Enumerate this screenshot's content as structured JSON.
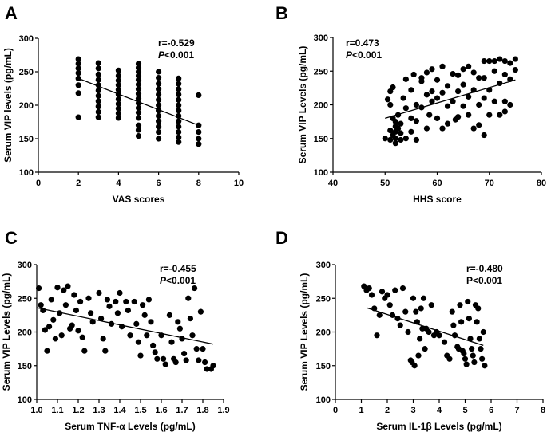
{
  "figure": {
    "panel_labels": [
      "A",
      "B",
      "C",
      "D"
    ]
  },
  "chart_data": [
    {
      "type": "scatter",
      "panel": "A",
      "xlabel": "VAS scores",
      "ylabel": "Serum VIP levels (pg/mL)",
      "xlim": [
        0,
        10
      ],
      "ylim": [
        100,
        300
      ],
      "xticks": [
        0,
        2,
        4,
        6,
        8,
        10
      ],
      "xtick_labels": [
        "0",
        "2",
        "4",
        "6",
        "8",
        "10"
      ],
      "yticks": [
        100,
        150,
        200,
        250,
        300
      ],
      "annotation_r": "r=-0.529",
      "annotation_p_italic": "P",
      "annotation_p_rest": "<0.001",
      "fit": {
        "x": [
          2,
          8
        ],
        "y": [
          240,
          170
        ]
      },
      "points": [
        [
          2,
          269
        ],
        [
          2,
          262
        ],
        [
          2,
          255
        ],
        [
          2,
          248
        ],
        [
          2,
          240
        ],
        [
          2,
          230
        ],
        [
          2,
          218
        ],
        [
          2,
          182
        ],
        [
          3,
          263
        ],
        [
          3,
          255
        ],
        [
          3,
          246
        ],
        [
          3,
          238
        ],
        [
          3,
          230
        ],
        [
          3,
          222
        ],
        [
          3,
          214
        ],
        [
          3,
          206
        ],
        [
          3,
          198
        ],
        [
          3,
          190
        ],
        [
          3,
          182
        ],
        [
          4,
          252
        ],
        [
          4,
          244
        ],
        [
          4,
          237
        ],
        [
          4,
          230
        ],
        [
          4,
          223
        ],
        [
          4,
          216
        ],
        [
          4,
          209
        ],
        [
          4,
          202
        ],
        [
          4,
          195
        ],
        [
          4,
          188
        ],
        [
          4,
          181
        ],
        [
          5,
          262
        ],
        [
          5,
          256
        ],
        [
          5,
          250
        ],
        [
          5,
          244
        ],
        [
          5,
          238
        ],
        [
          5,
          231
        ],
        [
          5,
          224
        ],
        [
          5,
          217
        ],
        [
          5,
          210
        ],
        [
          5,
          203
        ],
        [
          5,
          196
        ],
        [
          5,
          189
        ],
        [
          5,
          181
        ],
        [
          5,
          170
        ],
        [
          5,
          163
        ],
        [
          5,
          154
        ],
        [
          6,
          250
        ],
        [
          6,
          241
        ],
        [
          6,
          232
        ],
        [
          6,
          224
        ],
        [
          6,
          216
        ],
        [
          6,
          208
        ],
        [
          6,
          200
        ],
        [
          6,
          192
        ],
        [
          6,
          184
        ],
        [
          6,
          176
        ],
        [
          6,
          168
        ],
        [
          6,
          160
        ],
        [
          6,
          150
        ],
        [
          7,
          240
        ],
        [
          7,
          232
        ],
        [
          7,
          224
        ],
        [
          7,
          216
        ],
        [
          7,
          208
        ],
        [
          7,
          200
        ],
        [
          7,
          192
        ],
        [
          7,
          184
        ],
        [
          7,
          176
        ],
        [
          7,
          168
        ],
        [
          7,
          160
        ],
        [
          7,
          152
        ],
        [
          7,
          145
        ],
        [
          8,
          215
        ],
        [
          8,
          170
        ],
        [
          8,
          160
        ],
        [
          8,
          150
        ],
        [
          8,
          142
        ]
      ]
    },
    {
      "type": "scatter",
      "panel": "B",
      "xlabel": "HHS score",
      "ylabel": "Serum VIP Levels (pg/mL)",
      "xlim": [
        40,
        80
      ],
      "ylim": [
        100,
        300
      ],
      "xticks": [
        40,
        50,
        60,
        70,
        80
      ],
      "xtick_labels": [
        "40",
        "50",
        "60",
        "70",
        "80"
      ],
      "yticks": [
        100,
        150,
        200,
        250,
        300
      ],
      "annotation_r": "r=0.473",
      "annotation_p_italic": "P",
      "annotation_p_rest": "<0.001",
      "fit": {
        "x": [
          50,
          75
        ],
        "y": [
          180,
          237
        ]
      },
      "points": [
        [
          50,
          150
        ],
        [
          50.5,
          208
        ],
        [
          51,
          220
        ],
        [
          51,
          200
        ],
        [
          51,
          162
        ],
        [
          51,
          148
        ],
        [
          51.5,
          226
        ],
        [
          51.5,
          180
        ],
        [
          51.5,
          155
        ],
        [
          52,
          175
        ],
        [
          52,
          168
        ],
        [
          52,
          160
        ],
        [
          52,
          150
        ],
        [
          52,
          143
        ],
        [
          52.5,
          185
        ],
        [
          52.5,
          165
        ],
        [
          53,
          172
        ],
        [
          53,
          158
        ],
        [
          53,
          148
        ],
        [
          53.5,
          210
        ],
        [
          54,
          238
        ],
        [
          54,
          195
        ],
        [
          54,
          150
        ],
        [
          55,
          222
        ],
        [
          55,
          180
        ],
        [
          55,
          160
        ],
        [
          55.5,
          245
        ],
        [
          56,
          200
        ],
        [
          56,
          176
        ],
        [
          56,
          148
        ],
        [
          57,
          240
        ],
        [
          57,
          235
        ],
        [
          57,
          196
        ],
        [
          58,
          248
        ],
        [
          58,
          215
        ],
        [
          58,
          165
        ],
        [
          58.5,
          185
        ],
        [
          59,
          253
        ],
        [
          59,
          220
        ],
        [
          59,
          205
        ],
        [
          60,
          237
        ],
        [
          60,
          210
        ],
        [
          60,
          180
        ],
        [
          61,
          257
        ],
        [
          61,
          218
        ],
        [
          61,
          165
        ],
        [
          62,
          228
        ],
        [
          62,
          198
        ],
        [
          62,
          172
        ],
        [
          63,
          246
        ],
        [
          63,
          205
        ],
        [
          63.5,
          178
        ],
        [
          64,
          244
        ],
        [
          64,
          220
        ],
        [
          64,
          182
        ],
        [
          65,
          253
        ],
        [
          65,
          230
        ],
        [
          65,
          198
        ],
        [
          66,
          257
        ],
        [
          66,
          212
        ],
        [
          66,
          185
        ],
        [
          67,
          248
        ],
        [
          67,
          222
        ],
        [
          67,
          165
        ],
        [
          68,
          240
        ],
        [
          68,
          200
        ],
        [
          68,
          170
        ],
        [
          69,
          265
        ],
        [
          69,
          240
        ],
        [
          69,
          210
        ],
        [
          69,
          155
        ],
        [
          70,
          265
        ],
        [
          70,
          222
        ],
        [
          70,
          185
        ],
        [
          71,
          265
        ],
        [
          71,
          250
        ],
        [
          71,
          205
        ],
        [
          72,
          268
        ],
        [
          72,
          232
        ],
        [
          72,
          185
        ],
        [
          73,
          265
        ],
        [
          73,
          245
        ],
        [
          73,
          205
        ],
        [
          73,
          190
        ],
        [
          74,
          262
        ],
        [
          74,
          238
        ],
        [
          74,
          200
        ],
        [
          75,
          268
        ],
        [
          75,
          252
        ]
      ]
    },
    {
      "type": "scatter",
      "panel": "C",
      "xlabel": "Serum TNF-α Levels (pg/mL)",
      "ylabel": "Serum VIP Levels (pg/mL)",
      "xlim": [
        1.0,
        1.9
      ],
      "ylim": [
        100,
        300
      ],
      "xticks": [
        1.0,
        1.1,
        1.2,
        1.3,
        1.4,
        1.5,
        1.6,
        1.7,
        1.8,
        1.9
      ],
      "xtick_labels": [
        "1.0",
        "1.1",
        "1.2",
        "1.3",
        "1.4",
        "1.5",
        "1.6",
        "1.7",
        "1.8",
        "1.9"
      ],
      "yticks": [
        100,
        150,
        200,
        250,
        300
      ],
      "annotation_r": "r=-0.455",
      "annotation_p_italic": "P",
      "annotation_p_rest": "<0.001",
      "fit": {
        "x": [
          1.0,
          1.85
        ],
        "y": [
          236,
          182
        ]
      },
      "points": [
        [
          1.01,
          265
        ],
        [
          1.02,
          240
        ],
        [
          1.03,
          232
        ],
        [
          1.04,
          203
        ],
        [
          1.05,
          172
        ],
        [
          1.06,
          208
        ],
        [
          1.07,
          248
        ],
        [
          1.08,
          218
        ],
        [
          1.09,
          190
        ],
        [
          1.1,
          266
        ],
        [
          1.11,
          228
        ],
        [
          1.12,
          195
        ],
        [
          1.13,
          262
        ],
        [
          1.14,
          240
        ],
        [
          1.15,
          268
        ],
        [
          1.16,
          205
        ],
        [
          1.17,
          210
        ],
        [
          1.18,
          255
        ],
        [
          1.19,
          232
        ],
        [
          1.2,
          202
        ],
        [
          1.21,
          245
        ],
        [
          1.22,
          192
        ],
        [
          1.23,
          172
        ],
        [
          1.25,
          250
        ],
        [
          1.26,
          228
        ],
        [
          1.27,
          215
        ],
        [
          1.3,
          258
        ],
        [
          1.31,
          220
        ],
        [
          1.32,
          190
        ],
        [
          1.33,
          172
        ],
        [
          1.34,
          248
        ],
        [
          1.35,
          238
        ],
        [
          1.36,
          212
        ],
        [
          1.38,
          245
        ],
        [
          1.39,
          228
        ],
        [
          1.4,
          258
        ],
        [
          1.41,
          208
        ],
        [
          1.43,
          245
        ],
        [
          1.44,
          232
        ],
        [
          1.45,
          195
        ],
        [
          1.47,
          245
        ],
        [
          1.48,
          212
        ],
        [
          1.49,
          185
        ],
        [
          1.5,
          165
        ],
        [
          1.51,
          240
        ],
        [
          1.52,
          225
        ],
        [
          1.53,
          195
        ],
        [
          1.54,
          248
        ],
        [
          1.55,
          215
        ],
        [
          1.56,
          180
        ],
        [
          1.57,
          170
        ],
        [
          1.58,
          160
        ],
        [
          1.6,
          195
        ],
        [
          1.61,
          160
        ],
        [
          1.62,
          152
        ],
        [
          1.64,
          225
        ],
        [
          1.65,
          185
        ],
        [
          1.66,
          160
        ],
        [
          1.67,
          155
        ],
        [
          1.68,
          215
        ],
        [
          1.69,
          205
        ],
        [
          1.7,
          190
        ],
        [
          1.71,
          168
        ],
        [
          1.72,
          158
        ],
        [
          1.73,
          250
        ],
        [
          1.74,
          220
        ],
        [
          1.75,
          195
        ],
        [
          1.76,
          265
        ],
        [
          1.77,
          175
        ],
        [
          1.78,
          158
        ],
        [
          1.79,
          230
        ],
        [
          1.8,
          175
        ],
        [
          1.81,
          155
        ],
        [
          1.82,
          145
        ],
        [
          1.84,
          145
        ],
        [
          1.85,
          150
        ]
      ]
    },
    {
      "type": "scatter",
      "panel": "D",
      "xlabel": "Serum IL-1β Levels (pg/mL)",
      "ylabel": "Serum VIP Levels (pg/mL)",
      "xlim": [
        0,
        8
      ],
      "ylim": [
        100,
        300
      ],
      "xticks": [
        0,
        1,
        2,
        3,
        4,
        5,
        6,
        7,
        8
      ],
      "xtick_labels": [
        "0",
        "1",
        "2",
        "3",
        "4",
        "5",
        "6",
        "7",
        "8"
      ],
      "yticks": [
        100,
        150,
        200,
        250,
        300
      ],
      "annotation_r": "r=-0.480",
      "annotation_p_italic": "",
      "annotation_p_rest": "P<0.001",
      "fit": {
        "x": [
          1.2,
          5.7
        ],
        "y": [
          236,
          180
        ]
      },
      "points": [
        [
          1.1,
          268
        ],
        [
          1.2,
          262
        ],
        [
          1.3,
          265
        ],
        [
          1.4,
          255
        ],
        [
          1.5,
          235
        ],
        [
          1.6,
          195
        ],
        [
          1.7,
          225
        ],
        [
          1.8,
          260
        ],
        [
          1.9,
          250
        ],
        [
          2.0,
          255
        ],
        [
          2.1,
          240
        ],
        [
          2.2,
          225
        ],
        [
          2.3,
          262
        ],
        [
          2.4,
          220
        ],
        [
          2.5,
          210
        ],
        [
          2.6,
          265
        ],
        [
          2.7,
          230
        ],
        [
          2.8,
          200
        ],
        [
          2.9,
          158
        ],
        [
          2.95,
          155
        ],
        [
          3.0,
          250
        ],
        [
          3.05,
          150
        ],
        [
          3.1,
          230
        ],
        [
          3.15,
          215
        ],
        [
          3.2,
          165
        ],
        [
          3.25,
          190
        ],
        [
          3.3,
          235
        ],
        [
          3.35,
          205
        ],
        [
          3.4,
          250
        ],
        [
          3.45,
          175
        ],
        [
          3.5,
          205
        ],
        [
          3.6,
          200
        ],
        [
          3.7,
          240
        ],
        [
          3.8,
          195
        ],
        [
          3.9,
          200
        ],
        [
          4.0,
          195
        ],
        [
          4.2,
          185
        ],
        [
          4.3,
          165
        ],
        [
          4.4,
          160
        ],
        [
          4.5,
          230
        ],
        [
          4.55,
          210
        ],
        [
          4.6,
          195
        ],
        [
          4.7,
          178
        ],
        [
          4.75,
          175
        ],
        [
          4.8,
          240
        ],
        [
          4.85,
          215
        ],
        [
          4.9,
          172
        ],
        [
          4.95,
          168
        ],
        [
          5.0,
          160
        ],
        [
          5.05,
          152
        ],
        [
          5.1,
          245
        ],
        [
          5.15,
          220
        ],
        [
          5.2,
          190
        ],
        [
          5.25,
          175
        ],
        [
          5.3,
          165
        ],
        [
          5.35,
          155
        ],
        [
          5.4,
          240
        ],
        [
          5.45,
          215
        ],
        [
          5.5,
          235
        ],
        [
          5.55,
          190
        ],
        [
          5.6,
          175
        ],
        [
          5.65,
          160
        ],
        [
          5.7,
          200
        ],
        [
          5.75,
          150
        ]
      ]
    }
  ]
}
